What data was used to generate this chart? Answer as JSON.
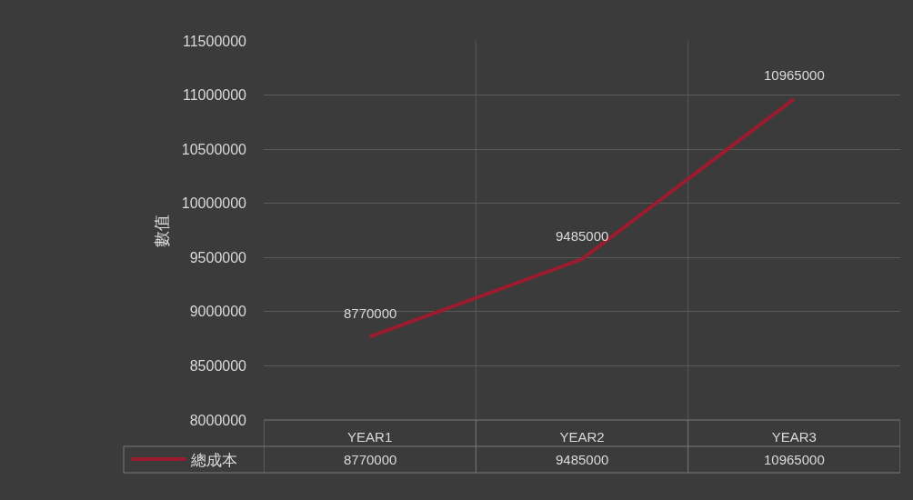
{
  "chart_data": {
    "type": "line",
    "ylabel": "數值",
    "categories": [
      "YEAR1",
      "YEAR2",
      "YEAR3"
    ],
    "series": [
      {
        "name": "總成本",
        "color": "#9b1c2e",
        "values": [
          8770000,
          9485000,
          10965000
        ],
        "value_labels": [
          "8770000",
          "9485000",
          "10965000"
        ]
      }
    ],
    "ylim": [
      8000000,
      11500000
    ],
    "yticks": [
      8000000,
      8500000,
      9000000,
      9500000,
      10000000,
      10500000,
      11000000,
      11500000
    ],
    "annotations": [
      "8770000",
      "9485000",
      "10965000"
    ],
    "grid": true,
    "legend": "bottom left",
    "marker": "none",
    "line_style": "solid"
  }
}
